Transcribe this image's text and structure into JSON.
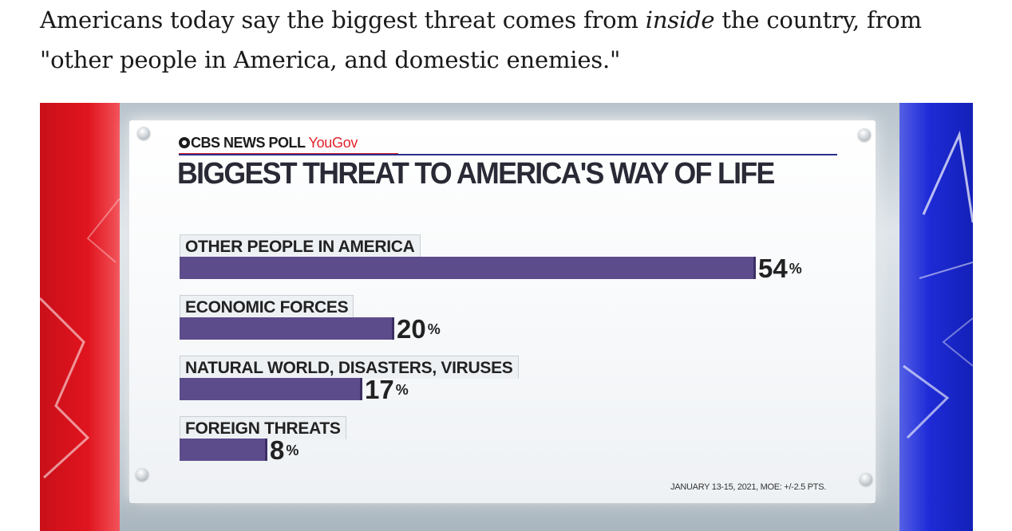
{
  "article": {
    "text_before": "Americans today say the biggest threat comes from ",
    "text_emphasis": "inside",
    "text_after": " the country, from \"other people in America, and domestic enemies.\""
  },
  "graphic": {
    "brand_name": "CBS NEWS POLL",
    "brand_partner": "YouGov",
    "title": "BIGGEST THREAT TO AMERICA'S WAY OF LIFE",
    "footnote": "JANUARY 13-15, 2021, MOE: +/-2.5 PTS.",
    "colors": {
      "bar": "#5d4c8c",
      "brand_red": "#e2232a",
      "side_red": "#e0141e",
      "side_blue": "#1e2bd6"
    }
  },
  "chart_data": {
    "type": "bar",
    "title": "BIGGEST THREAT TO AMERICA'S WAY OF LIFE",
    "categories": [
      "OTHER PEOPLE IN AMERICA",
      "ECONOMIC FORCES",
      "NATURAL WORLD, DISASTERS, VIRUSES",
      "FOREIGN THREATS"
    ],
    "values": [
      54,
      20,
      17,
      8
    ],
    "unit": "%",
    "xlabel": "",
    "ylabel": "",
    "ylim": [
      0,
      54
    ]
  }
}
